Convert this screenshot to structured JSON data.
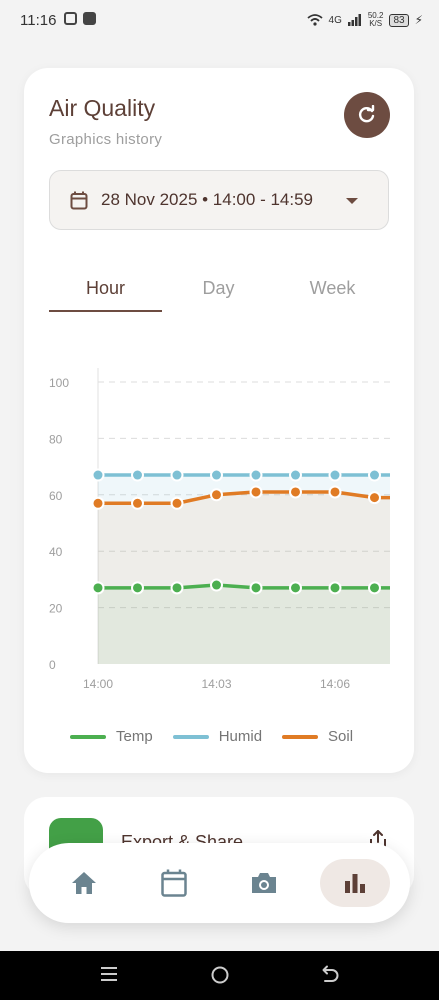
{
  "status_bar": {
    "time": "11:16",
    "network": "4G",
    "speed_value": "50.2",
    "speed_unit": "K/S",
    "battery": "83"
  },
  "card": {
    "title": "Air Quality",
    "subtitle": "Graphics history",
    "refresh_icon": "refresh-icon",
    "date_range": "28 Nov 2025 • 14:00 - 14:59",
    "tabs": [
      {
        "label": "Hour",
        "active": true
      },
      {
        "label": "Day",
        "active": false
      },
      {
        "label": "Week",
        "active": false
      }
    ]
  },
  "chart_data": {
    "type": "line",
    "x": [
      "14:00",
      "14:01",
      "14:02",
      "14:03",
      "14:04",
      "14:05",
      "14:06",
      "14:07"
    ],
    "x_tick_labels": [
      "14:00",
      "14:03",
      "14:06"
    ],
    "ylim": [
      0,
      100
    ],
    "y_ticks": [
      0,
      20,
      40,
      60,
      80,
      100
    ],
    "grid": true,
    "legend_position": "bottom",
    "series": [
      {
        "name": "Temp",
        "color": "#4caf50",
        "values": [
          27,
          27,
          27,
          28,
          27,
          27,
          27,
          27
        ]
      },
      {
        "name": "Humid",
        "color": "#7ec0d4",
        "values": [
          67,
          67,
          67,
          67,
          67,
          67,
          67,
          67
        ]
      },
      {
        "name": "Soil",
        "color": "#e07b24",
        "values": [
          57,
          57,
          57,
          60,
          61,
          61,
          61,
          59
        ]
      }
    ]
  },
  "export": {
    "label": "Export & Share",
    "icon": "export-icon",
    "share_icon": "share-icon"
  },
  "bottom_nav": [
    {
      "icon": "home-icon",
      "active": false
    },
    {
      "icon": "calendar-icon",
      "active": false
    },
    {
      "icon": "camera-icon",
      "active": false
    },
    {
      "icon": "bar-chart-icon",
      "active": true
    }
  ],
  "system_nav": [
    "menu-icon",
    "home-circle-icon",
    "back-icon"
  ]
}
